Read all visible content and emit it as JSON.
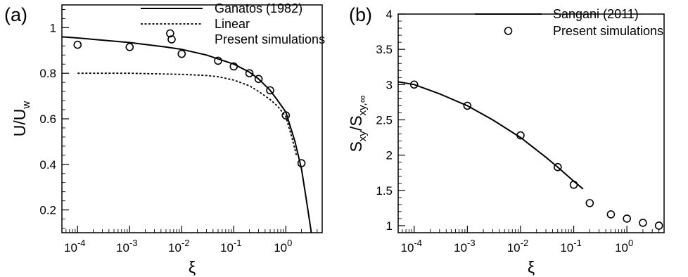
{
  "chart_data": [
    {
      "type": "line",
      "panel_label": "(a)",
      "xlabel": "ξ",
      "ylabel_main": "U/U",
      "ylabel_sub": "w",
      "xscale": "log",
      "xlim": [
        5e-05,
        5
      ],
      "ylim": [
        0.1,
        1.1
      ],
      "xticks": [
        {
          "value": 0.0001,
          "base": "10",
          "exp": "-4"
        },
        {
          "value": 0.001,
          "base": "10",
          "exp": "-3"
        },
        {
          "value": 0.01,
          "base": "10",
          "exp": "-2"
        },
        {
          "value": 0.1,
          "base": "10",
          "exp": "-1"
        },
        {
          "value": 1,
          "base": "10",
          "exp": "0"
        }
      ],
      "yticks": [
        {
          "value": 0.2,
          "label": "0.2"
        },
        {
          "value": 0.4,
          "label": "0.4"
        },
        {
          "value": 0.6,
          "label": "0.6"
        },
        {
          "value": 0.8,
          "label": "0.8"
        },
        {
          "value": 1.0,
          "label": "1"
        }
      ],
      "legend_position": "top-right",
      "series": [
        {
          "name": "Ganatos (1982)",
          "style": "solid",
          "x": [
            5e-05,
            0.0001,
            0.001,
            0.005,
            0.01,
            0.03,
            0.1,
            0.2,
            0.3,
            0.5,
            0.7,
            1.0,
            1.5,
            2.0,
            2.5,
            3.0,
            3.3
          ],
          "y": [
            0.96,
            0.955,
            0.935,
            0.915,
            0.905,
            0.88,
            0.84,
            0.805,
            0.775,
            0.725,
            0.68,
            0.63,
            0.5,
            0.38,
            0.24,
            0.12,
            0.05
          ]
        },
        {
          "name": "Linear",
          "style": "dotted",
          "x": [
            0.0001,
            0.001,
            0.01,
            0.03,
            0.05,
            0.1,
            0.2,
            0.3,
            0.5,
            0.7,
            1.0,
            1.3,
            1.6
          ],
          "y": [
            0.8,
            0.8,
            0.795,
            0.79,
            0.785,
            0.77,
            0.745,
            0.72,
            0.685,
            0.655,
            0.61,
            0.52,
            0.44
          ]
        },
        {
          "name": "Present simulations",
          "style": "markers",
          "x": [
            0.0001,
            0.001,
            0.006,
            0.01,
            0.05,
            0.1,
            0.2,
            0.3,
            0.5,
            1.0,
            2.0
          ],
          "y": [
            0.925,
            0.915,
            0.975,
            0.885,
            0.855,
            0.83,
            0.8,
            0.775,
            0.725,
            0.615,
            0.405
          ]
        }
      ]
    },
    {
      "type": "line",
      "panel_label": "(b)",
      "xlabel": "ξ",
      "ylabel_main": "S",
      "ylabel_sub1": "xy",
      "ylabel_sep": "/S",
      "ylabel_sub2": "xy,∞",
      "xscale": "log",
      "xlim": [
        5e-05,
        5
      ],
      "ylim": [
        0.9,
        4.0
      ],
      "xticks": [
        {
          "value": 0.0001,
          "base": "10",
          "exp": "-4"
        },
        {
          "value": 0.001,
          "base": "10",
          "exp": "-3"
        },
        {
          "value": 0.01,
          "base": "10",
          "exp": "-2"
        },
        {
          "value": 0.1,
          "base": "10",
          "exp": "-1"
        },
        {
          "value": 1,
          "base": "10",
          "exp": "0"
        }
      ],
      "yticks": [
        {
          "value": 1,
          "label": "1"
        },
        {
          "value": 1.5,
          "label": "1.5"
        },
        {
          "value": 2,
          "label": "2"
        },
        {
          "value": 2.5,
          "label": "2.5"
        },
        {
          "value": 3,
          "label": "3"
        },
        {
          "value": 3.5,
          "label": "3.5"
        },
        {
          "value": 4,
          "label": "4"
        }
      ],
      "legend_position": "top-right",
      "series": [
        {
          "name": "Sangani (2011)",
          "style": "solid",
          "x": [
            5e-05,
            0.0001,
            0.0003,
            0.001,
            0.003,
            0.01,
            0.03,
            0.05,
            0.1,
            0.15
          ],
          "y": [
            3.04,
            3.0,
            2.87,
            2.7,
            2.5,
            2.25,
            1.97,
            1.83,
            1.63,
            1.52
          ]
        },
        {
          "name": "Present simulations",
          "style": "markers",
          "x": [
            0.0001,
            0.001,
            0.01,
            0.05,
            0.1,
            0.2,
            0.5,
            1.0,
            2.0,
            4.0
          ],
          "y": [
            3.0,
            2.7,
            2.28,
            1.83,
            1.58,
            1.32,
            1.16,
            1.1,
            1.04,
            1.0
          ]
        }
      ]
    }
  ]
}
